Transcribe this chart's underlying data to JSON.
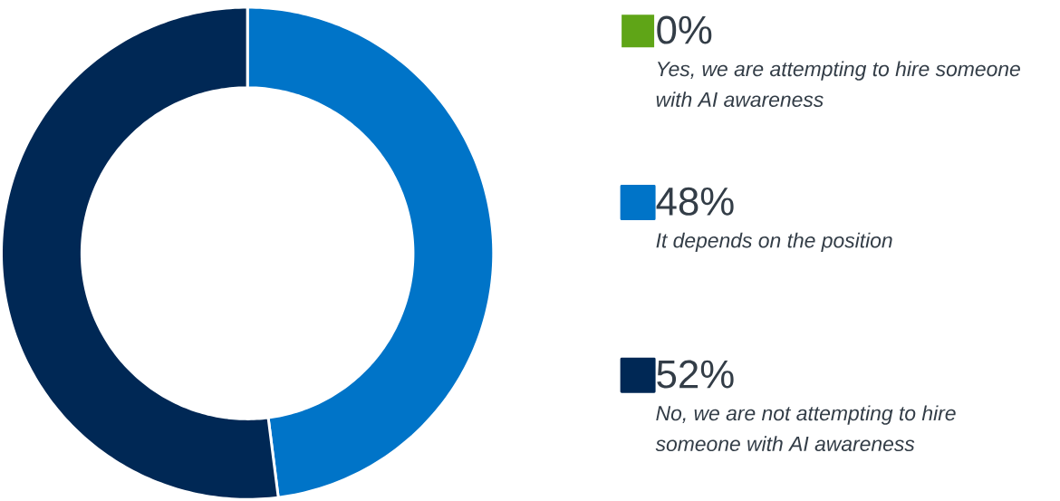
{
  "chart_data": {
    "type": "donut",
    "categories": [
      "Yes, we are attempting to hire someone with AI awareness",
      "It depends on the position",
      "No, we are not attempting to hire someone with AI awareness"
    ],
    "values": [
      0,
      48,
      52
    ],
    "colors": [
      "#5fa517",
      "#0074c8",
      "#002855"
    ],
    "value_labels": [
      "0%",
      "48%",
      "52%"
    ],
    "legend": "right"
  }
}
